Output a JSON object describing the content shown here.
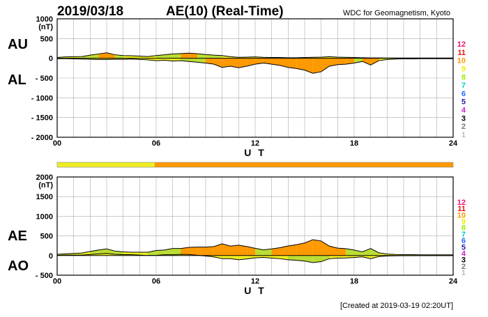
{
  "header": {
    "date": "2019/03/18",
    "title": "AE(10) (Real-Time)",
    "credit": "WDC for Geomagnetism, Kyoto"
  },
  "footer": "[Created at 2019-03-19 02:20UT]",
  "colors": {
    "fill_low": "#eeee22",
    "fill_mid": "#bbdd33",
    "fill_high": "#ff9900",
    "outline": "#000000",
    "grid": "#aaaaaa"
  },
  "activity_scale": [
    {
      "label": "12",
      "color": "#ee1177"
    },
    {
      "label": "11",
      "color": "#ee1111"
    },
    {
      "label": "10",
      "color": "#ff9900"
    },
    {
      "label": "9",
      "color": "#eeee00"
    },
    {
      "label": "8",
      "color": "#99ee00"
    },
    {
      "label": "7",
      "color": "#00cccc"
    },
    {
      "label": "6",
      "color": "#2266ff"
    },
    {
      "label": "5",
      "color": "#2222aa"
    },
    {
      "label": "4",
      "color": "#cc22cc"
    },
    {
      "label": "3",
      "color": "#000000"
    },
    {
      "label": "2",
      "color": "#777777"
    },
    {
      "label": "1",
      "color": "#bbbbbb"
    }
  ],
  "activity_bar": [
    {
      "from": 0.0,
      "to": 5.9,
      "color": "#eeee22"
    },
    {
      "from": 5.9,
      "to": 24.0,
      "color": "#ff9900"
    }
  ],
  "chart_data": [
    {
      "type": "area",
      "id": "au_al",
      "xlabel": "U T",
      "unit_label": "(nT)",
      "xlim": [
        0,
        24
      ],
      "xticks": [
        0,
        6,
        12,
        18,
        24
      ],
      "xtick_labels": [
        "00",
        "06",
        "12",
        "18",
        "24"
      ],
      "ylim": [
        -2000,
        1000
      ],
      "yticks": [
        1000,
        500,
        0,
        -500,
        -1000,
        -1500,
        -2000
      ],
      "ytick_labels": [
        "1000",
        "500",
        "0",
        "- 500",
        "- 1000",
        "- 1500",
        "- 2000"
      ],
      "grid": true,
      "upper_label": "AU",
      "lower_label": "AL",
      "x": [
        0,
        0.5,
        1,
        1.5,
        2,
        2.5,
        3,
        3.5,
        4,
        4.5,
        5,
        5.5,
        6,
        6.5,
        7,
        7.5,
        8,
        8.5,
        9,
        9.5,
        10,
        10.5,
        11,
        11.5,
        12,
        12.5,
        13,
        13.5,
        14,
        14.5,
        15,
        15.5,
        16,
        16.5,
        17,
        17.5,
        18,
        18.5,
        19,
        19.5,
        20,
        20.5,
        21,
        21.5,
        22,
        22.5,
        23,
        23.5,
        24
      ],
      "series": [
        {
          "name": "AU",
          "values": [
            20,
            35,
            40,
            45,
            80,
            110,
            140,
            90,
            70,
            65,
            55,
            45,
            70,
            90,
            110,
            120,
            130,
            115,
            95,
            80,
            70,
            40,
            25,
            30,
            35,
            25,
            20,
            20,
            15,
            15,
            20,
            25,
            30,
            40,
            30,
            25,
            20,
            15,
            10,
            10,
            8,
            8,
            8,
            8,
            8,
            8,
            8,
            8,
            8
          ]
        },
        {
          "name": "AL",
          "values": [
            -10,
            -10,
            -15,
            -20,
            -25,
            -30,
            -30,
            -25,
            -25,
            -20,
            -30,
            -40,
            -60,
            -50,
            -70,
            -60,
            -80,
            -100,
            -120,
            -150,
            -230,
            -200,
            -240,
            -200,
            -150,
            -120,
            -150,
            -180,
            -230,
            -260,
            -300,
            -380,
            -340,
            -200,
            -160,
            -150,
            -120,
            -80,
            -170,
            -60,
            -30,
            -20,
            -15,
            -15,
            -10,
            -10,
            -10,
            -10,
            -10
          ]
        }
      ]
    },
    {
      "type": "area",
      "id": "ae_ao",
      "xlabel": "U T",
      "unit_label": "(nT)",
      "xlim": [
        0,
        24
      ],
      "xticks": [
        0,
        6,
        12,
        18,
        24
      ],
      "xtick_labels": [
        "00",
        "06",
        "12",
        "18",
        "24"
      ],
      "ylim": [
        -500,
        2000
      ],
      "yticks": [
        2000,
        1500,
        1000,
        500,
        0,
        -500
      ],
      "ytick_labels": [
        "2000",
        "1500",
        "1000",
        "500",
        "0",
        "- 500"
      ],
      "grid": true,
      "upper_label": "AE",
      "lower_label": "AO",
      "x": [
        0,
        0.5,
        1,
        1.5,
        2,
        2.5,
        3,
        3.5,
        4,
        4.5,
        5,
        5.5,
        6,
        6.5,
        7,
        7.5,
        8,
        8.5,
        9,
        9.5,
        10,
        10.5,
        11,
        11.5,
        12,
        12.5,
        13,
        13.5,
        14,
        14.5,
        15,
        15.5,
        16,
        16.5,
        17,
        17.5,
        18,
        18.5,
        19,
        19.5,
        20,
        20.5,
        21,
        21.5,
        22,
        22.5,
        23,
        23.5,
        24
      ],
      "series": [
        {
          "name": "AE",
          "values": [
            30,
            45,
            55,
            65,
            105,
            140,
            170,
            115,
            95,
            85,
            85,
            85,
            130,
            140,
            180,
            180,
            210,
            215,
            215,
            230,
            300,
            240,
            265,
            230,
            185,
            145,
            170,
            200,
            245,
            275,
            320,
            405,
            370,
            240,
            190,
            175,
            140,
            95,
            180,
            70,
            38,
            28,
            23,
            23,
            18,
            18,
            18,
            18,
            18
          ]
        },
        {
          "name": "AO",
          "values": [
            5,
            12,
            12,
            12,
            27,
            40,
            55,
            32,
            22,
            22,
            12,
            2,
            5,
            20,
            20,
            30,
            25,
            8,
            -12,
            -35,
            -80,
            -80,
            -108,
            -85,
            -58,
            -48,
            -65,
            -80,
            -108,
            -122,
            -140,
            -178,
            -155,
            -80,
            -65,
            -62,
            -50,
            -32,
            -80,
            -25,
            -11,
            -6,
            -3,
            -3,
            -1,
            -1,
            -1,
            -1,
            -1
          ]
        }
      ]
    }
  ]
}
